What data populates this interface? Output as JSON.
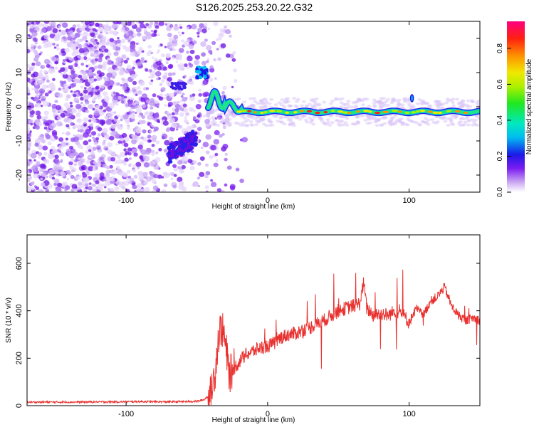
{
  "title": "S126.2025.253.20.22.G32",
  "chart_data": [
    {
      "type": "heatmap",
      "xlabel": "Height of straight line (km)",
      "ylabel": "Frequency (Hz)",
      "xlim": [
        -170,
        150
      ],
      "ylim": [
        -25,
        25
      ],
      "xticks": [
        -100,
        0,
        100
      ],
      "xtick_labels": [
        "-100",
        "0",
        "100"
      ],
      "yticks": [
        -20,
        -10,
        0,
        10,
        20
      ],
      "ytick_labels": [
        "-20",
        "-10",
        "0",
        "10",
        "20"
      ],
      "description_of_signal": {
        "noise_region_x": [
          -170,
          -40
        ],
        "burst_x": [
          -50,
          -42
        ],
        "burst_freq": 10,
        "chirp_low_x": [
          -70,
          -50
        ],
        "chirp_low_freq": -14,
        "track_x": [
          -40,
          150
        ],
        "track_freq": -1.5
      },
      "colorbar": {
        "label": "Normalized spectral amplitude",
        "range": [
          0,
          0.95
        ],
        "ticks": [
          0.0,
          0.2,
          0.4,
          0.6,
          0.8
        ],
        "tick_labels": [
          "0.0",
          "0.2",
          "0.4",
          "0.6",
          "0.8"
        ]
      }
    },
    {
      "type": "line",
      "xlabel": "Height of straight line (km)",
      "ylabel": "SNR (10 * v/v)",
      "xlim": [
        -170,
        150
      ],
      "ylim": [
        0,
        720
      ],
      "xticks": [
        -100,
        0,
        100
      ],
      "xtick_labels": [
        "-100",
        "0",
        "100"
      ],
      "yticks": [
        0,
        200,
        400,
        600
      ],
      "ytick_labels": [
        "0",
        "200",
        "400",
        "600"
      ],
      "color": "#e8312f",
      "series": [
        {
          "name": "SNR",
          "x": [
            -170,
            -140,
            -110,
            -90,
            -70,
            -50,
            -45,
            -40,
            -37,
            -35,
            -33,
            -31,
            -29,
            -27,
            -25,
            -22,
            -18,
            -14,
            -10,
            -5,
            0,
            5,
            10,
            15,
            20,
            25,
            30,
            35,
            40,
            45,
            50,
            55,
            60,
            65,
            68,
            70,
            75,
            80,
            85,
            90,
            95,
            100,
            105,
            110,
            115,
            120,
            125,
            130,
            135,
            140,
            145,
            150
          ],
          "values": [
            15,
            15,
            16,
            17,
            16,
            18,
            25,
            50,
            150,
            280,
            330,
            300,
            220,
            130,
            150,
            170,
            200,
            220,
            230,
            245,
            250,
            265,
            290,
            300,
            305,
            320,
            330,
            345,
            360,
            380,
            400,
            410,
            420,
            430,
            520,
            410,
            380,
            390,
            380,
            400,
            390,
            350,
            410,
            380,
            440,
            460,
            500,
            420,
            380,
            360,
            370,
            360
          ]
        }
      ]
    }
  ]
}
